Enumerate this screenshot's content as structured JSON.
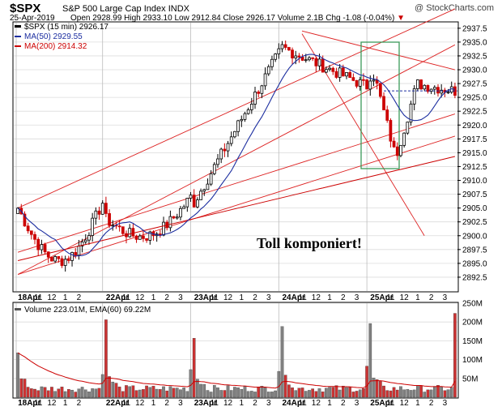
{
  "header": {
    "symbol": "$SPX",
    "name": "S&P 500 Large Cap Index",
    "exchange": "INDX",
    "date": "25-Apr-2019",
    "quote": "Open 2928.99  High 2933.10  Low 2912.84  Close 2926.17  Volume 2.1B  Chg -1.08 (-0.04%)",
    "brand": "@ StockCharts.com"
  },
  "legend": {
    "price": "$SPX (15 min) 2926.17",
    "ma50": "MA(50) 2929.55",
    "ma200": "MA(200) 2914.32",
    "volume": "Volume 223.01M, EMA(60) 69.22M"
  },
  "annotation": "Toll komponiert!",
  "colors": {
    "up": "#000000",
    "down": "#cc0000",
    "ma50": "#1c2ea0",
    "ma200": "#cc0000",
    "trendline": "#dd2222",
    "highlight_box": "#3b9a5a",
    "vol_up": "#808080",
    "vol_down": "#cc3333",
    "grid": "#dcdcdc"
  },
  "chart_data": [
    {
      "type": "candlestick",
      "interval": "15 min",
      "ylim": [
        2890,
        2938.5
      ],
      "y_ticks": [
        "2937.5",
        "2935.0",
        "2932.5",
        "2930.0",
        "2927.5",
        "2925.0",
        "2922.5",
        "2920.0",
        "2917.5",
        "2915.0",
        "2912.5",
        "2910.0",
        "2907.5",
        "2905.0",
        "2902.5",
        "2900.0",
        "2897.5",
        "2895.0",
        "2892.5"
      ],
      "x_labels": [
        "18Apr",
        "11",
        "12",
        "1",
        "2",
        "22Apr",
        "11",
        "12",
        "1",
        "2",
        "3",
        "23Apr",
        "11",
        "12",
        "1",
        "2",
        "3",
        "24Apr",
        "11",
        "12",
        "1",
        "2",
        "3",
        "25Apr",
        "11",
        "12",
        "1",
        "2",
        "3"
      ],
      "last_close": 2926.17,
      "grid": true,
      "sessions": [
        {
          "label": "18Apr",
          "open": 2905.0,
          "close": 2906.0,
          "low": 2892.5,
          "high": 2908.5
        },
        {
          "label": "22Apr",
          "open": 2903.0,
          "close": 2907.0,
          "low": 2896.5,
          "high": 2908.0
        },
        {
          "label": "23Apr",
          "open": 2906.0,
          "close": 2933.0,
          "low": 2905.0,
          "high": 2936.0
        },
        {
          "label": "24Apr",
          "open": 2934.0,
          "close": 2927.0,
          "low": 2926.5,
          "high": 2936.5
        },
        {
          "label": "25Apr",
          "open": 2929.0,
          "close": 2926.17,
          "low": 2912.84,
          "high": 2933.1
        }
      ]
    },
    {
      "type": "bar",
      "title": "Volume 223.01M, EMA(60) 69.22M",
      "ylim": [
        0,
        250
      ],
      "y_ticks": [
        "250M",
        "200M",
        "150M",
        "100M",
        "50M"
      ],
      "session_opening_volumes_M": [
        {
          "label": "18Apr",
          "value": 118
        },
        {
          "label": "22Apr",
          "value": 206
        },
        {
          "label": "23Apr",
          "value": 157
        },
        {
          "label": "24Apr",
          "value": 188
        },
        {
          "label": "25Apr",
          "value": 196
        }
      ],
      "last_volume_M": 223.01,
      "ema60_M": 69.22
    }
  ]
}
